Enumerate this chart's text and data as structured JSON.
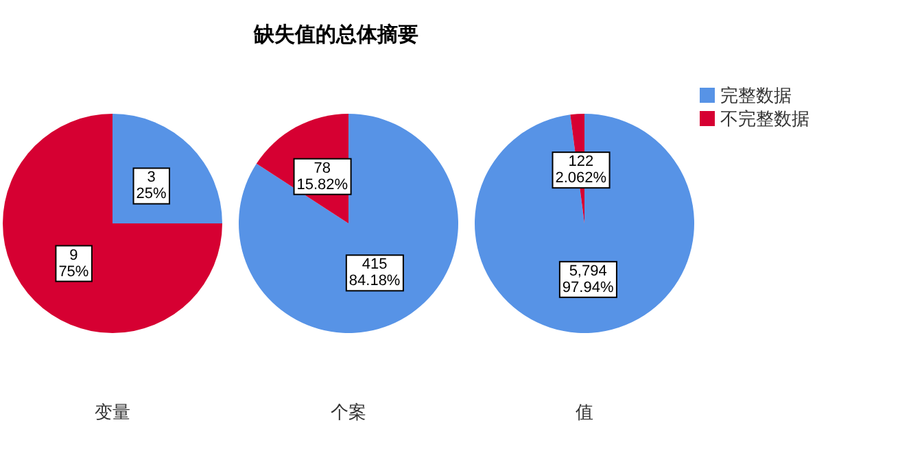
{
  "chart_data": [
    {
      "type": "pie",
      "xlabel": "变量",
      "categories": [
        null,
        null
      ],
      "values": [
        3,
        9
      ],
      "value_labels": [
        "3\n25%",
        "9\n75%"
      ],
      "colors": [
        "#5793e6",
        "#d60032"
      ]
    },
    {
      "type": "pie",
      "title": "缺失值的总体摘要",
      "xlabel": "个案",
      "categories": [
        null,
        null
      ],
      "values": [
        415,
        78
      ],
      "value_labels": [
        "415\n84.18%",
        "78\n15.82%"
      ],
      "colors": [
        "#5793e6",
        "#d60032"
      ]
    },
    {
      "type": "pie",
      "xlabel": "值",
      "categories": [
        "完整数据",
        "不完整数据"
      ],
      "values": [
        5794,
        122
      ],
      "value_labels": [
        "5,794\n97.94%",
        "122\n2.062%"
      ],
      "colors": [
        "#5793e6",
        "#d60032"
      ],
      "legend": "right"
    }
  ]
}
